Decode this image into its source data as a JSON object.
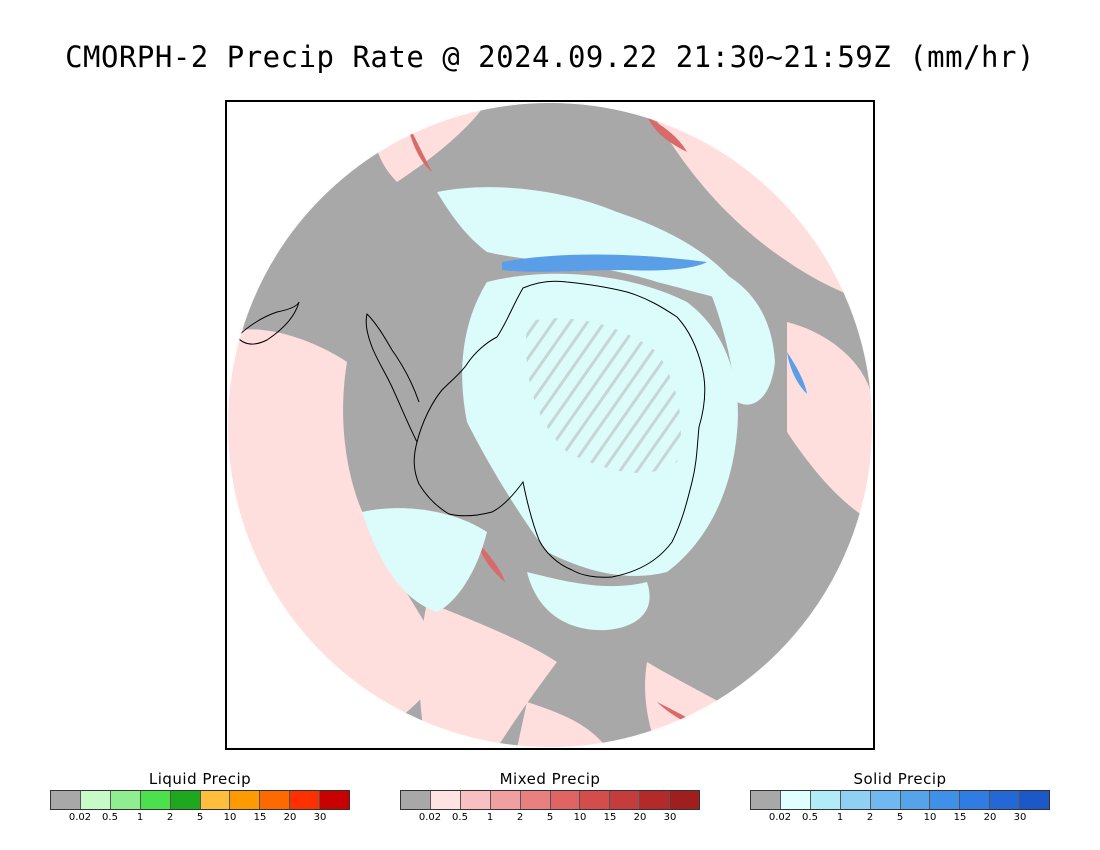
{
  "title": "CMORPH-2 Precip Rate @ 2024.09.22 21:30~21:59Z (mm/hr)",
  "map": {
    "colors": {
      "no_precip": "#a8a8a8",
      "mixed_light": "#ffdede",
      "mixed_mid": "#f2b3b3",
      "mixed_heavy": "#d96a6a",
      "solid_light": "#dcfbfb",
      "solid_mid": "#9fd4f4",
      "solid_heavy": "#5a9ee8",
      "liquid_light": "#88ee88",
      "coastline": "#000000",
      "background": "#ffffff"
    }
  },
  "legends": [
    {
      "title": "Liquid Precip",
      "colors": [
        "#a8a8a8",
        "#c8fac8",
        "#90ee90",
        "#4ce04c",
        "#1ea81e",
        "#ffbe3c",
        "#ff9a00",
        "#ff6a00",
        "#ff3000",
        "#c80000"
      ],
      "ticks": [
        "0.02",
        "0.5",
        "1",
        "2",
        "5",
        "10",
        "15",
        "20",
        "30"
      ]
    },
    {
      "title": "Mixed Precip",
      "colors": [
        "#a8a8a8",
        "#ffe2e2",
        "#f8c0c0",
        "#f0a0a0",
        "#e88080",
        "#e06464",
        "#d44c4c",
        "#c43c3c",
        "#b42a2a",
        "#a01e1e"
      ],
      "ticks": [
        "0.02",
        "0.5",
        "1",
        "2",
        "5",
        "10",
        "15",
        "20",
        "30"
      ]
    },
    {
      "title": "Solid Precip",
      "colors": [
        "#a8a8a8",
        "#e0ffff",
        "#b0ecf8",
        "#90d0f4",
        "#72b8f0",
        "#54a4ec",
        "#3e90e8",
        "#2e7ce4",
        "#2468d8",
        "#1c58c8"
      ],
      "ticks": [
        "0.02",
        "0.5",
        "1",
        "2",
        "5",
        "10",
        "15",
        "20",
        "30"
      ]
    }
  ]
}
